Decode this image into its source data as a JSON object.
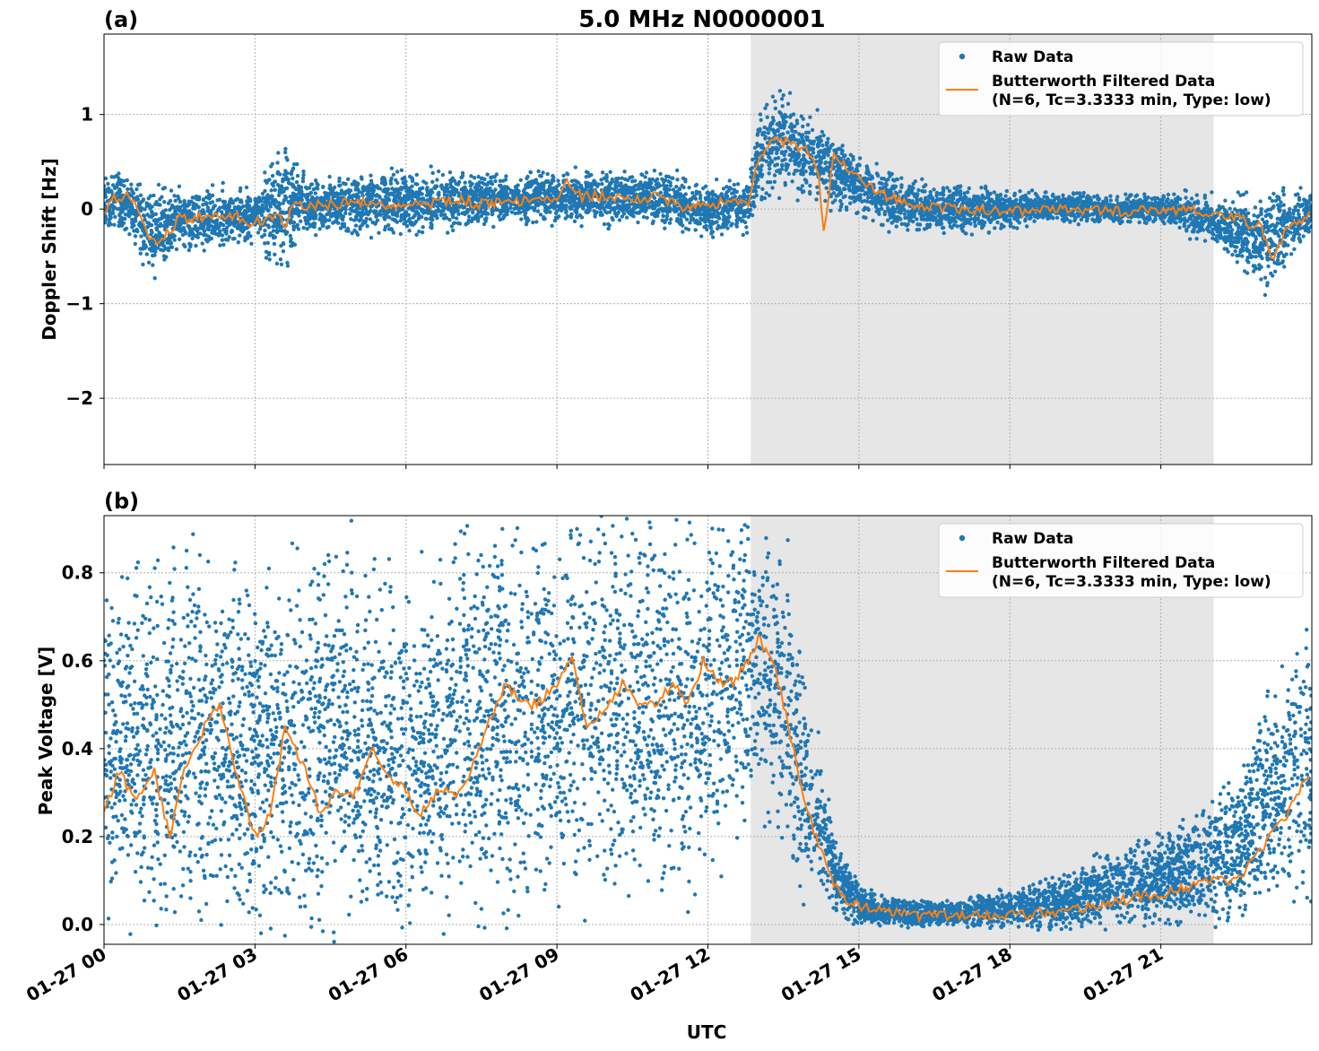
{
  "figure": {
    "title": "5.0 MHz N0000001",
    "xlabel": "UTC",
    "colors": {
      "raw": "#1f77b4",
      "filtered": "#ff7f0e",
      "shade": "#e6e6e6",
      "grid": "#b0b0b0"
    }
  },
  "chart_data": [
    {
      "panel_label": "(a)",
      "type": "scatter",
      "ylabel": "Doppler Shift [Hz]",
      "xlim": [
        "01-27 00:00",
        "01-28 00:00"
      ],
      "ylim": [
        -2.7,
        1.85
      ],
      "yticks": [
        1,
        0,
        -1,
        -2
      ],
      "ytick_labels": [
        "1",
        "0",
        "−1",
        "−2"
      ],
      "xticks": [
        "01-27 00",
        "01-27 03",
        "01-27 06",
        "01-27 09",
        "01-27 12",
        "01-27 15",
        "01-27 18",
        "01-27 21"
      ],
      "grid": true,
      "shaded_interval_hours": [
        12.85,
        22.05
      ],
      "legend": {
        "position": "upper right",
        "raw_label": "Raw Data",
        "filtered_label_line1": "Butterworth Filtered Data",
        "filtered_label_line2": "(N=6, Tc=3.3333 min, Type: low)"
      },
      "series": [
        {
          "name": "Butterworth Filtered Data",
          "x_hours": [
            0,
            0.2,
            0.4,
            0.6,
            0.8,
            1,
            1.2,
            1.5,
            2,
            2.5,
            3,
            3.5,
            3.6,
            3.7,
            4,
            4.5,
            5,
            5.5,
            6,
            6.5,
            7,
            7.5,
            8,
            8.5,
            9,
            9.2,
            9.5,
            10,
            10.5,
            11,
            11.5,
            12,
            12.5,
            12.8,
            13,
            13.2,
            13.5,
            14,
            14.2,
            14.3,
            14.5,
            15,
            15.5,
            16,
            17,
            18,
            19,
            20,
            21,
            22,
            22.5,
            23,
            23.2,
            23.5,
            24
          ],
          "values": [
            0,
            0.1,
            0.15,
            0.05,
            -0.2,
            -0.35,
            -0.3,
            -0.1,
            -0.08,
            -0.05,
            -0.15,
            -0.02,
            -0.2,
            0.05,
            0.02,
            0.05,
            0.08,
            0.05,
            0.02,
            0.05,
            0.1,
            0.05,
            0.1,
            0.08,
            0.1,
            0.3,
            0.12,
            0.15,
            0.08,
            0.15,
            0,
            0.05,
            0.1,
            0.05,
            0.55,
            0.7,
            0.72,
            0.6,
            0.4,
            -0.25,
            0.6,
            0.3,
            0.15,
            0.05,
            0,
            -0.02,
            0,
            -0.03,
            0,
            -0.03,
            -0.1,
            -0.2,
            -0.55,
            -0.2,
            -0.05
          ]
        },
        {
          "name": "Raw Data",
          "band_hours": [
            0,
            0.5,
            0.8,
            1,
            1.5,
            2,
            3,
            3.6,
            4,
            5,
            6,
            7,
            8,
            9,
            10,
            11,
            12,
            12.8,
            13,
            13.5,
            14,
            14.5,
            15,
            15.5,
            16,
            17,
            18,
            19,
            20,
            21,
            22,
            22.5,
            23,
            23.5,
            24
          ],
          "band_low": [
            -0.2,
            -0.2,
            -0.5,
            -0.6,
            -0.4,
            -0.35,
            -0.3,
            -0.5,
            -0.2,
            -0.2,
            -0.2,
            -0.15,
            -0.1,
            -0.1,
            -0.1,
            -0.1,
            -0.25,
            -0.2,
            0.1,
            0.3,
            0.2,
            0.1,
            0,
            -0.15,
            -0.2,
            -0.2,
            -0.15,
            -0.1,
            -0.12,
            -0.12,
            -0.3,
            -0.5,
            -0.75,
            -0.5,
            -0.2
          ],
          "band_high": [
            0.3,
            0.3,
            0.1,
            0.1,
            0.15,
            0.15,
            0.15,
            0.6,
            0.3,
            0.3,
            0.35,
            0.35,
            0.3,
            0.35,
            0.35,
            0.35,
            0.2,
            0.3,
            0.9,
            1.15,
            1.0,
            0.7,
            0.5,
            0.35,
            0.3,
            0.2,
            0.15,
            0.15,
            0.12,
            0.15,
            0.1,
            0.05,
            0.05,
            0.1,
            0.15
          ]
        }
      ]
    },
    {
      "panel_label": "(b)",
      "type": "scatter",
      "ylabel": "Peak Voltage [V]",
      "xlim": [
        "01-27 00:00",
        "01-28 00:00"
      ],
      "ylim": [
        -0.045,
        0.93
      ],
      "yticks": [
        0.8,
        0.6,
        0.4,
        0.2,
        0.0
      ],
      "ytick_labels": [
        "0.8",
        "0.6",
        "0.4",
        "0.2",
        "0.0"
      ],
      "xticks": [
        "01-27 00",
        "01-27 03",
        "01-27 06",
        "01-27 09",
        "01-27 12",
        "01-27 15",
        "01-27 18",
        "01-27 21"
      ],
      "grid": true,
      "shaded_interval_hours": [
        12.85,
        22.05
      ],
      "legend": {
        "position": "upper right",
        "raw_label": "Raw Data",
        "filtered_label_line1": "Butterworth Filtered Data",
        "filtered_label_line2": "(N=6, Tc=3.3333 min, Type: low)"
      },
      "series": [
        {
          "name": "Butterworth Filtered Data",
          "x_hours": [
            0,
            0.3,
            0.6,
            1,
            1.3,
            1.6,
            2,
            2.3,
            2.6,
            3,
            3.3,
            3.6,
            4,
            4.3,
            4.6,
            5,
            5.3,
            5.6,
            6,
            6.3,
            6.6,
            7,
            7.3,
            7.6,
            8,
            8.3,
            8.6,
            9,
            9.3,
            9.6,
            10,
            10.3,
            10.6,
            11,
            11.3,
            11.6,
            11.9,
            12.2,
            12.5,
            12.8,
            13,
            13.3,
            13.6,
            14,
            14.3,
            14.6,
            15,
            15.5,
            16,
            17,
            18,
            19,
            20,
            21,
            22,
            22.5,
            23,
            23.5,
            24
          ],
          "values": [
            0.25,
            0.35,
            0.28,
            0.35,
            0.2,
            0.35,
            0.45,
            0.5,
            0.35,
            0.2,
            0.25,
            0.45,
            0.35,
            0.25,
            0.3,
            0.3,
            0.4,
            0.35,
            0.3,
            0.25,
            0.3,
            0.3,
            0.35,
            0.45,
            0.55,
            0.5,
            0.5,
            0.55,
            0.6,
            0.45,
            0.5,
            0.55,
            0.5,
            0.5,
            0.55,
            0.5,
            0.6,
            0.55,
            0.55,
            0.6,
            0.65,
            0.6,
            0.45,
            0.25,
            0.15,
            0.07,
            0.04,
            0.03,
            0.02,
            0.02,
            0.02,
            0.03,
            0.05,
            0.07,
            0.1,
            0.1,
            0.17,
            0.25,
            0.35
          ]
        },
        {
          "name": "Raw Data",
          "band_hours": [
            0,
            1,
            2,
            3,
            4,
            5,
            6,
            7,
            8,
            9,
            10,
            11,
            12,
            12.8,
            13.5,
            14,
            14.5,
            15,
            15.5,
            16,
            17,
            18,
            19,
            20,
            21,
            22,
            22.5,
            23,
            23.5,
            24
          ],
          "band_low": [
            0.1,
            0.08,
            0.08,
            0.05,
            0.08,
            0.06,
            0.05,
            0.1,
            0.1,
            0.15,
            0.12,
            0.15,
            0.15,
            0.3,
            0.25,
            0.1,
            0.03,
            0.01,
            0,
            0,
            0,
            0,
            0,
            0.01,
            0.02,
            0.02,
            0.04,
            0.08,
            0.1,
            0.12
          ],
          "band_high": [
            0.7,
            0.75,
            0.8,
            0.7,
            0.8,
            0.75,
            0.7,
            0.8,
            0.85,
            0.85,
            0.85,
            0.85,
            0.88,
            0.85,
            0.8,
            0.5,
            0.2,
            0.08,
            0.06,
            0.05,
            0.05,
            0.07,
            0.1,
            0.15,
            0.2,
            0.25,
            0.3,
            0.45,
            0.55,
            0.65
          ]
        }
      ]
    }
  ]
}
